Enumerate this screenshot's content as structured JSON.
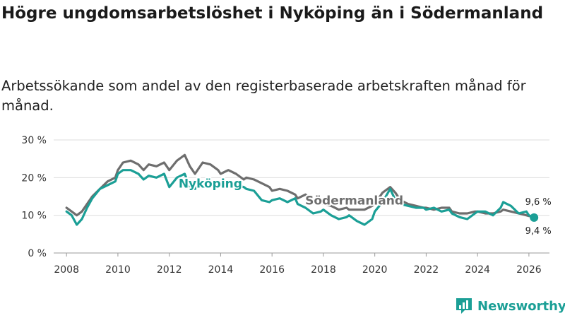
{
  "title": "Högre ungdomsarbetslöshet i Nyköping än i Södermanland",
  "subtitle": "Arbetssökande som andel av den registerbaserade arbetskraften månad för månad.",
  "brand": {
    "name": "Newsworthy",
    "color": "#1b9f96"
  },
  "chart_data": {
    "type": "line",
    "ylim": [
      0,
      30
    ],
    "xlim": [
      2007.5,
      2026.8
    ],
    "yticks": [
      0,
      10,
      20,
      30
    ],
    "ytick_labels": [
      "0 %",
      "10 %",
      "20 %",
      "30 %"
    ],
    "xticks": [
      2008,
      2010,
      2012,
      2014,
      2016,
      2018,
      2020,
      2022,
      2024,
      2026
    ],
    "xtick_labels": [
      "2008",
      "2010",
      "2012",
      "2014",
      "2016",
      "2018",
      "2020",
      "2022",
      "2024",
      "2026"
    ],
    "grid": true,
    "series": [
      {
        "name": "Södermanland",
        "color": "#6e6e6e",
        "end_label": "9,6 %",
        "points": [
          [
            2008.0,
            12
          ],
          [
            2008.2,
            11
          ],
          [
            2008.4,
            10
          ],
          [
            2008.6,
            11
          ],
          [
            2008.8,
            13
          ],
          [
            2009.0,
            15
          ],
          [
            2009.3,
            17
          ],
          [
            2009.6,
            19
          ],
          [
            2009.9,
            20
          ],
          [
            2010.0,
            22
          ],
          [
            2010.2,
            24
          ],
          [
            2010.5,
            24.5
          ],
          [
            2010.8,
            23.5
          ],
          [
            2011.0,
            22
          ],
          [
            2011.2,
            23.5
          ],
          [
            2011.5,
            23
          ],
          [
            2011.8,
            24
          ],
          [
            2012.0,
            22
          ],
          [
            2012.3,
            24.5
          ],
          [
            2012.6,
            26
          ],
          [
            2012.8,
            23
          ],
          [
            2013.0,
            21
          ],
          [
            2013.3,
            24
          ],
          [
            2013.6,
            23.5
          ],
          [
            2013.9,
            22
          ],
          [
            2014.0,
            21
          ],
          [
            2014.3,
            22
          ],
          [
            2014.6,
            21
          ],
          [
            2014.9,
            19.5
          ],
          [
            2015.0,
            20
          ],
          [
            2015.3,
            19.5
          ],
          [
            2015.6,
            18.5
          ],
          [
            2015.9,
            17.5
          ],
          [
            2016.0,
            16.5
          ],
          [
            2016.3,
            17
          ],
          [
            2016.6,
            16.5
          ],
          [
            2016.9,
            15.5
          ],
          [
            2017.0,
            14.5
          ],
          [
            2017.3,
            15.5
          ],
          [
            2017.6,
            14
          ],
          [
            2017.9,
            13.5
          ],
          [
            2018.0,
            13
          ],
          [
            2018.3,
            12.5
          ],
          [
            2018.6,
            11.5
          ],
          [
            2018.9,
            12
          ],
          [
            2019.0,
            11.5
          ],
          [
            2019.3,
            11.5
          ],
          [
            2019.6,
            11.5
          ],
          [
            2019.9,
            12.5
          ],
          [
            2020.0,
            13
          ],
          [
            2020.3,
            16
          ],
          [
            2020.6,
            17.5
          ],
          [
            2020.8,
            16
          ],
          [
            2021.0,
            14
          ],
          [
            2021.3,
            13
          ],
          [
            2021.6,
            12.5
          ],
          [
            2021.9,
            12
          ],
          [
            2022.0,
            12
          ],
          [
            2022.3,
            11.5
          ],
          [
            2022.6,
            12
          ],
          [
            2022.9,
            12
          ],
          [
            2023.0,
            11
          ],
          [
            2023.3,
            10.5
          ],
          [
            2023.6,
            10.5
          ],
          [
            2023.9,
            11
          ],
          [
            2024.0,
            11
          ],
          [
            2024.3,
            10.5
          ],
          [
            2024.6,
            10.5
          ],
          [
            2024.9,
            11
          ],
          [
            2025.0,
            11.5
          ],
          [
            2025.3,
            11
          ],
          [
            2025.6,
            10.5
          ],
          [
            2025.9,
            10
          ],
          [
            2026.0,
            9.8
          ],
          [
            2026.2,
            9.6
          ]
        ]
      },
      {
        "name": "Nyköping",
        "color": "#1b9f96",
        "end_label": "9,4 %",
        "points": [
          [
            2008.0,
            11
          ],
          [
            2008.2,
            10
          ],
          [
            2008.4,
            7.5
          ],
          [
            2008.6,
            9
          ],
          [
            2008.8,
            12
          ],
          [
            2009.0,
            14.5
          ],
          [
            2009.3,
            17
          ],
          [
            2009.6,
            18
          ],
          [
            2009.9,
            19
          ],
          [
            2010.0,
            21
          ],
          [
            2010.2,
            22
          ],
          [
            2010.5,
            22
          ],
          [
            2010.8,
            21
          ],
          [
            2011.0,
            19.5
          ],
          [
            2011.2,
            20.5
          ],
          [
            2011.5,
            20
          ],
          [
            2011.8,
            21
          ],
          [
            2012.0,
            17.5
          ],
          [
            2012.3,
            20
          ],
          [
            2012.6,
            21
          ],
          [
            2012.8,
            17.5
          ],
          [
            2013.0,
            17
          ],
          [
            2013.3,
            19
          ],
          [
            2013.6,
            18
          ],
          [
            2013.9,
            18.5
          ],
          [
            2014.0,
            18
          ],
          [
            2014.3,
            19
          ],
          [
            2014.6,
            18
          ],
          [
            2014.9,
            17.5
          ],
          [
            2015.0,
            17
          ],
          [
            2015.3,
            16.5
          ],
          [
            2015.6,
            14
          ],
          [
            2015.9,
            13.5
          ],
          [
            2016.0,
            14
          ],
          [
            2016.3,
            14.5
          ],
          [
            2016.6,
            13.5
          ],
          [
            2016.9,
            14.5
          ],
          [
            2017.0,
            13
          ],
          [
            2017.3,
            12
          ],
          [
            2017.6,
            10.5
          ],
          [
            2017.9,
            11
          ],
          [
            2018.0,
            11.5
          ],
          [
            2018.3,
            10
          ],
          [
            2018.6,
            9
          ],
          [
            2018.9,
            9.5
          ],
          [
            2019.0,
            10
          ],
          [
            2019.3,
            8.5
          ],
          [
            2019.6,
            7.5
          ],
          [
            2019.9,
            9
          ],
          [
            2020.0,
            11
          ],
          [
            2020.3,
            13.5
          ],
          [
            2020.6,
            17
          ],
          [
            2020.8,
            14
          ],
          [
            2021.0,
            13
          ],
          [
            2021.3,
            12.5
          ],
          [
            2021.6,
            12
          ],
          [
            2021.9,
            12
          ],
          [
            2022.0,
            11.5
          ],
          [
            2022.3,
            12
          ],
          [
            2022.6,
            11
          ],
          [
            2022.9,
            11.5
          ],
          [
            2023.0,
            10.5
          ],
          [
            2023.3,
            9.5
          ],
          [
            2023.6,
            9
          ],
          [
            2023.9,
            10.5
          ],
          [
            2024.0,
            11
          ],
          [
            2024.3,
            11
          ],
          [
            2024.6,
            10
          ],
          [
            2024.9,
            12
          ],
          [
            2025.0,
            13.5
          ],
          [
            2025.3,
            12.5
          ],
          [
            2025.6,
            10.5
          ],
          [
            2025.9,
            11
          ],
          [
            2026.0,
            10
          ],
          [
            2026.2,
            9.4
          ]
        ]
      }
    ],
    "annotations": [
      {
        "series": "Nyköping",
        "text": "Nyköping",
        "x": 2013.6
      },
      {
        "series": "Södermanland",
        "text": "Södermanland",
        "x": 2019.2
      }
    ]
  }
}
